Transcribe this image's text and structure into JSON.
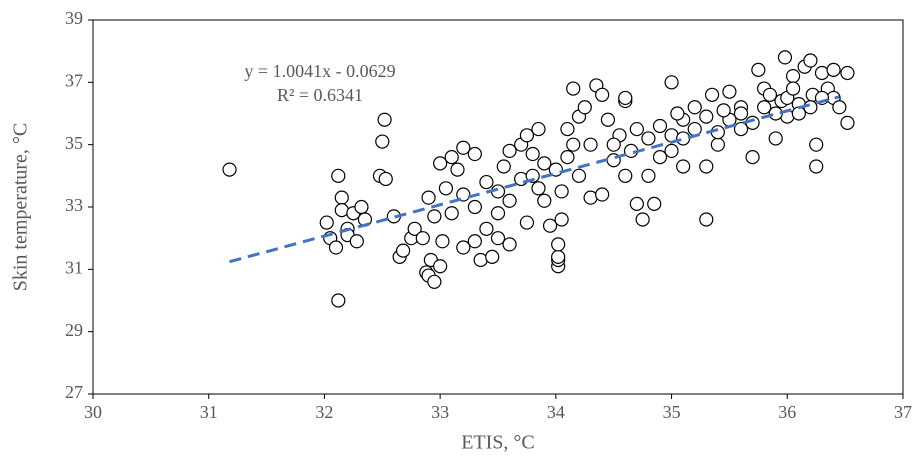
{
  "chart_data": {
    "type": "scatter",
    "x_label": "ETIS, °C",
    "y_label": "Skin temperature, °C",
    "xlim": [
      30,
      37
    ],
    "xticks": [
      30,
      31,
      32,
      33,
      34,
      35,
      36,
      37
    ],
    "ylim": [
      27,
      39
    ],
    "yticks": [
      27,
      29,
      31,
      33,
      35,
      37,
      39
    ],
    "marker_color": "#000000",
    "x": [
      31.18,
      32.02,
      32.05,
      32.1,
      32.12,
      32.12,
      32.15,
      32.15,
      32.2,
      32.2,
      32.25,
      32.28,
      32.32,
      32.35,
      32.48,
      32.5,
      32.52,
      32.53,
      32.6,
      32.65,
      32.68,
      32.75,
      32.78,
      32.85,
      32.88,
      32.9,
      32.92,
      32.95,
      33.0,
      33.02,
      32.9,
      33.0,
      33.05,
      33.1,
      33.2,
      33.3,
      33.2,
      33.3,
      33.35,
      33.45,
      33.5,
      33.6,
      33.4,
      33.5,
      33.5,
      33.6,
      33.7,
      33.75,
      33.8,
      33.85,
      33.9,
      33.9,
      33.95,
      34.02,
      34.02,
      34.02,
      34.02,
      34.05,
      34.05,
      34.1,
      34.1,
      34.15,
      34.2,
      34.25,
      34.35,
      34.4,
      34.3,
      34.4,
      34.5,
      34.55,
      34.6,
      34.6,
      34.7,
      34.75,
      34.8,
      34.85,
      34.9,
      35.0,
      35.0,
      35.1,
      35.1,
      35.2,
      35.3,
      35.3,
      35.35,
      35.4,
      35.5,
      35.6,
      35.6,
      35.7,
      35.75,
      35.8,
      35.9,
      35.95,
      35.98,
      36.0,
      36.05,
      36.1,
      36.15,
      36.2,
      36.22,
      36.25,
      36.25,
      36.3,
      36.35,
      36.4,
      36.4,
      36.45,
      36.52,
      36.52,
      33.3,
      33.4,
      33.6,
      33.7,
      33.8,
      34.0,
      34.2,
      34.3,
      34.5,
      34.6,
      34.7,
      34.8,
      34.9,
      35.0,
      35.1,
      35.2,
      35.3,
      35.4,
      35.5,
      35.6,
      35.7,
      35.8,
      35.9,
      36.0,
      36.1,
      36.2,
      36.3,
      33.1,
      33.2,
      32.95,
      33.15,
      34.15,
      34.45,
      34.65,
      35.05,
      35.45,
      35.85,
      36.05,
      33.55,
      33.75,
      33.85
    ],
    "values": [
      34.2,
      32.5,
      32.0,
      31.7,
      30.0,
      34.0,
      33.3,
      32.9,
      32.3,
      32.1,
      32.8,
      31.9,
      33.0,
      32.6,
      34.0,
      35.1,
      35.8,
      33.9,
      32.7,
      31.4,
      31.6,
      32.0,
      32.3,
      32.0,
      30.9,
      30.8,
      31.3,
      30.6,
      31.1,
      31.9,
      33.3,
      34.4,
      33.6,
      34.6,
      34.9,
      34.7,
      31.7,
      31.9,
      31.3,
      31.4,
      32.0,
      31.8,
      32.3,
      32.8,
      33.5,
      34.8,
      35.0,
      35.3,
      34.7,
      35.5,
      34.4,
      33.2,
      32.4,
      31.1,
      31.3,
      31.4,
      31.8,
      32.6,
      33.5,
      34.6,
      35.5,
      36.8,
      35.9,
      36.2,
      36.9,
      36.6,
      33.3,
      33.4,
      34.5,
      35.3,
      36.4,
      36.5,
      33.1,
      32.6,
      34.0,
      33.1,
      35.6,
      37.0,
      35.3,
      35.8,
      34.3,
      36.2,
      32.6,
      34.3,
      36.6,
      35.0,
      36.7,
      35.5,
      36.2,
      34.6,
      37.4,
      36.8,
      35.2,
      36.4,
      37.8,
      35.9,
      37.2,
      36.3,
      37.5,
      37.7,
      36.6,
      34.3,
      35.0,
      37.3,
      36.8,
      37.4,
      36.5,
      36.2,
      35.7,
      37.3,
      33.0,
      33.8,
      33.2,
      33.9,
      34.0,
      34.2,
      34.0,
      35.0,
      35.0,
      34.0,
      35.5,
      35.2,
      34.6,
      34.8,
      35.2,
      35.5,
      35.9,
      35.4,
      35.8,
      36.0,
      35.7,
      36.2,
      36.0,
      36.5,
      36.0,
      36.2,
      36.5,
      32.8,
      33.4,
      32.7,
      34.2,
      35.0,
      35.8,
      34.8,
      36.0,
      36.1,
      36.6,
      36.8,
      34.3,
      32.5,
      33.6
    ],
    "trendline": {
      "label": "y = 1.0041x - 0.0629",
      "r2_label": "R² = 0.6341",
      "slope": 1.0041,
      "intercept": -0.0629,
      "x": [
        31.18,
        36.45
      ],
      "color": "#4472c4"
    }
  }
}
